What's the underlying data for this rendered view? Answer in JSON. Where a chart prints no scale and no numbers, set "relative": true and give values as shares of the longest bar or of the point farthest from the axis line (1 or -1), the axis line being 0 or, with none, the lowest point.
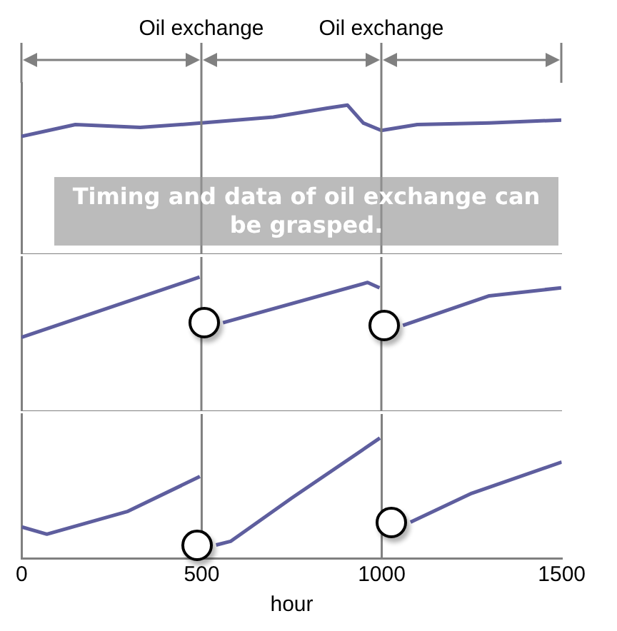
{
  "chart_data": [
    {
      "type": "line",
      "relative": true,
      "series": [
        {
          "x": [
            0,
            150,
            330,
            500,
            700,
            850,
            906,
            950,
            1000,
            1100,
            1300,
            1500
          ],
          "values": [
            0.79,
            0.87,
            0.85,
            0.88,
            0.92,
            0.98,
            1,
            0.88,
            0.83,
            0.87,
            0.88,
            0.9
          ],
          "color": "#5e5e9e"
        }
      ],
      "xlim": [
        0,
        1500
      ],
      "xticks": [
        0,
        500,
        1000,
        1500
      ],
      "tick_labels": false,
      "ref_lines": [
        {
          "axis": "x",
          "value": 500,
          "label": "Oil exchange"
        },
        {
          "axis": "x",
          "value": 1000,
          "label": "Oil exchange"
        }
      ],
      "annotations": [
        "Timing and data of oil exchange can be grasped."
      ]
    },
    {
      "type": "line",
      "relative": true,
      "series": [
        {
          "x": [
            0,
            495
          ],
          "values": [
            0.55,
            1
          ],
          "color": "#5e5e9e"
        },
        {
          "x": [
            560,
            962,
            995
          ],
          "values": [
            0.66,
            0.96,
            0.92
          ],
          "color": "#5e5e9e"
        },
        {
          "x": [
            1060,
            1300,
            1500
          ],
          "values": [
            0.64,
            0.86,
            0.92
          ],
          "color": "#5e5e9e"
        }
      ],
      "xlim": [
        0,
        1500
      ],
      "xticks": [
        0,
        500,
        1000,
        1500
      ],
      "tick_labels": false,
      "ref_lines": [
        {
          "axis": "x",
          "value": 500
        },
        {
          "axis": "x",
          "value": 1000
        }
      ]
    },
    {
      "type": "line",
      "relative": true,
      "series": [
        {
          "x": [
            0,
            70,
            295,
            495
          ],
          "values": [
            0.26,
            0.2,
            0.39,
            0.68
          ],
          "color": "#5e5e9e"
        },
        {
          "x": [
            540,
            580,
            750,
            995
          ],
          "values": [
            0.11,
            0.14,
            0.5,
            1
          ],
          "color": "#5e5e9e"
        },
        {
          "x": [
            1080,
            1250,
            1500
          ],
          "values": [
            0.3,
            0.54,
            0.8
          ],
          "color": "#5e5e9e"
        }
      ],
      "xlim": [
        0,
        1500
      ],
      "xticks": [
        0,
        500,
        1000,
        1500
      ],
      "xlabel": "hour",
      "ref_lines": [
        {
          "axis": "x",
          "value": 500
        },
        {
          "axis": "x",
          "value": 1000
        }
      ]
    }
  ]
}
